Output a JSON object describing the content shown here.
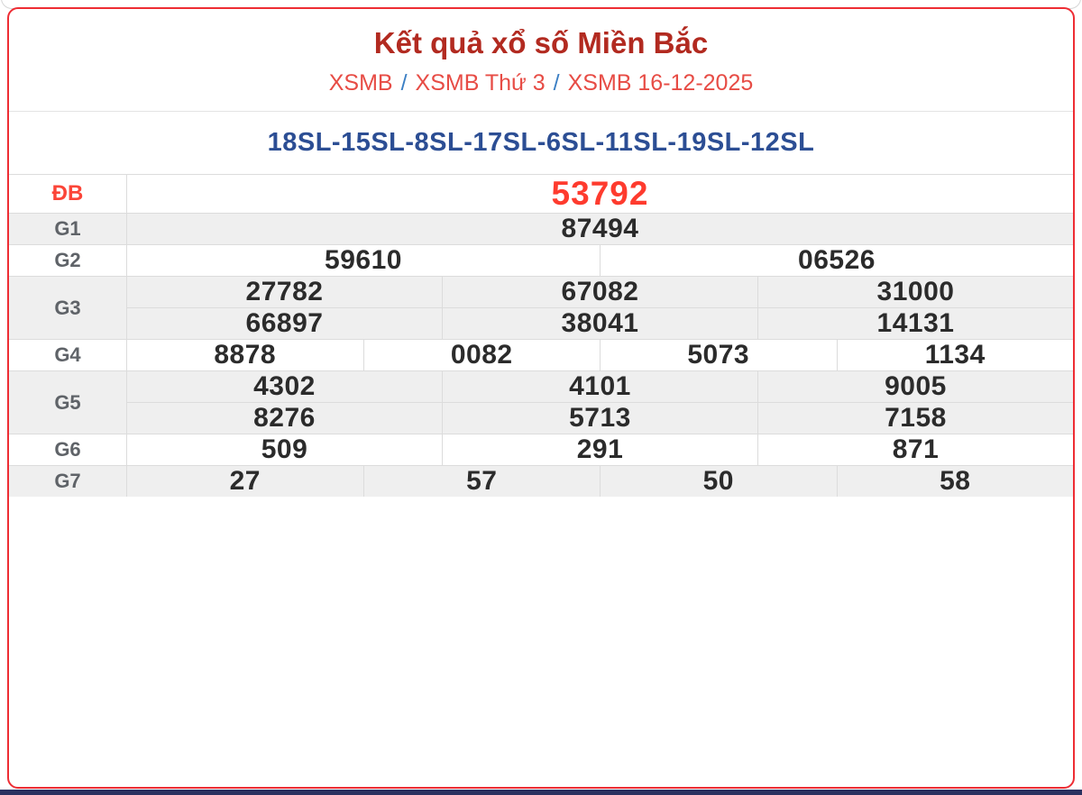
{
  "header": {
    "title": "Kết quả xổ số Miền Bắc",
    "breadcrumb": [
      {
        "label": "XSMB"
      },
      {
        "label": "XSMB Thứ 3"
      },
      {
        "label": "XSMB 16-12-2025"
      }
    ],
    "breadcrumb_separator": "/"
  },
  "loto_line": "18SL-15SL-8SL-17SL-6SL-11SL-19SL-12SL",
  "prizes": [
    {
      "label": "ĐB",
      "groups": [
        [
          "53792"
        ]
      ]
    },
    {
      "label": "G1",
      "groups": [
        [
          "87494"
        ]
      ]
    },
    {
      "label": "G2",
      "groups": [
        [
          "59610",
          "06526"
        ]
      ]
    },
    {
      "label": "G3",
      "groups": [
        [
          "27782",
          "67082",
          "31000"
        ],
        [
          "66897",
          "38041",
          "14131"
        ]
      ]
    },
    {
      "label": "G4",
      "groups": [
        [
          "8878",
          "0082",
          "5073",
          "1134"
        ]
      ]
    },
    {
      "label": "G5",
      "groups": [
        [
          "4302",
          "4101",
          "9005"
        ],
        [
          "8276",
          "5713",
          "7158"
        ]
      ]
    },
    {
      "label": "G6",
      "groups": [
        [
          "509",
          "291",
          "871"
        ]
      ]
    },
    {
      "label": "G7",
      "groups": [
        [
          "27",
          "57",
          "50",
          "58"
        ]
      ]
    }
  ],
  "colors": {
    "card_border": "#ee2d34",
    "title": "#b22a20",
    "breadcrumb_link": "#e74c45",
    "breadcrumb_separator": "#3b7fc4",
    "loto_text": "#2c4e94",
    "special_prize": "#fe3b2e",
    "value_text": "#2b2b2b",
    "label_text": "#5f6368",
    "row_alt_bg": "#efefef",
    "grid_border": "#dcdcdc",
    "bottom_bar": "#2a3160"
  }
}
